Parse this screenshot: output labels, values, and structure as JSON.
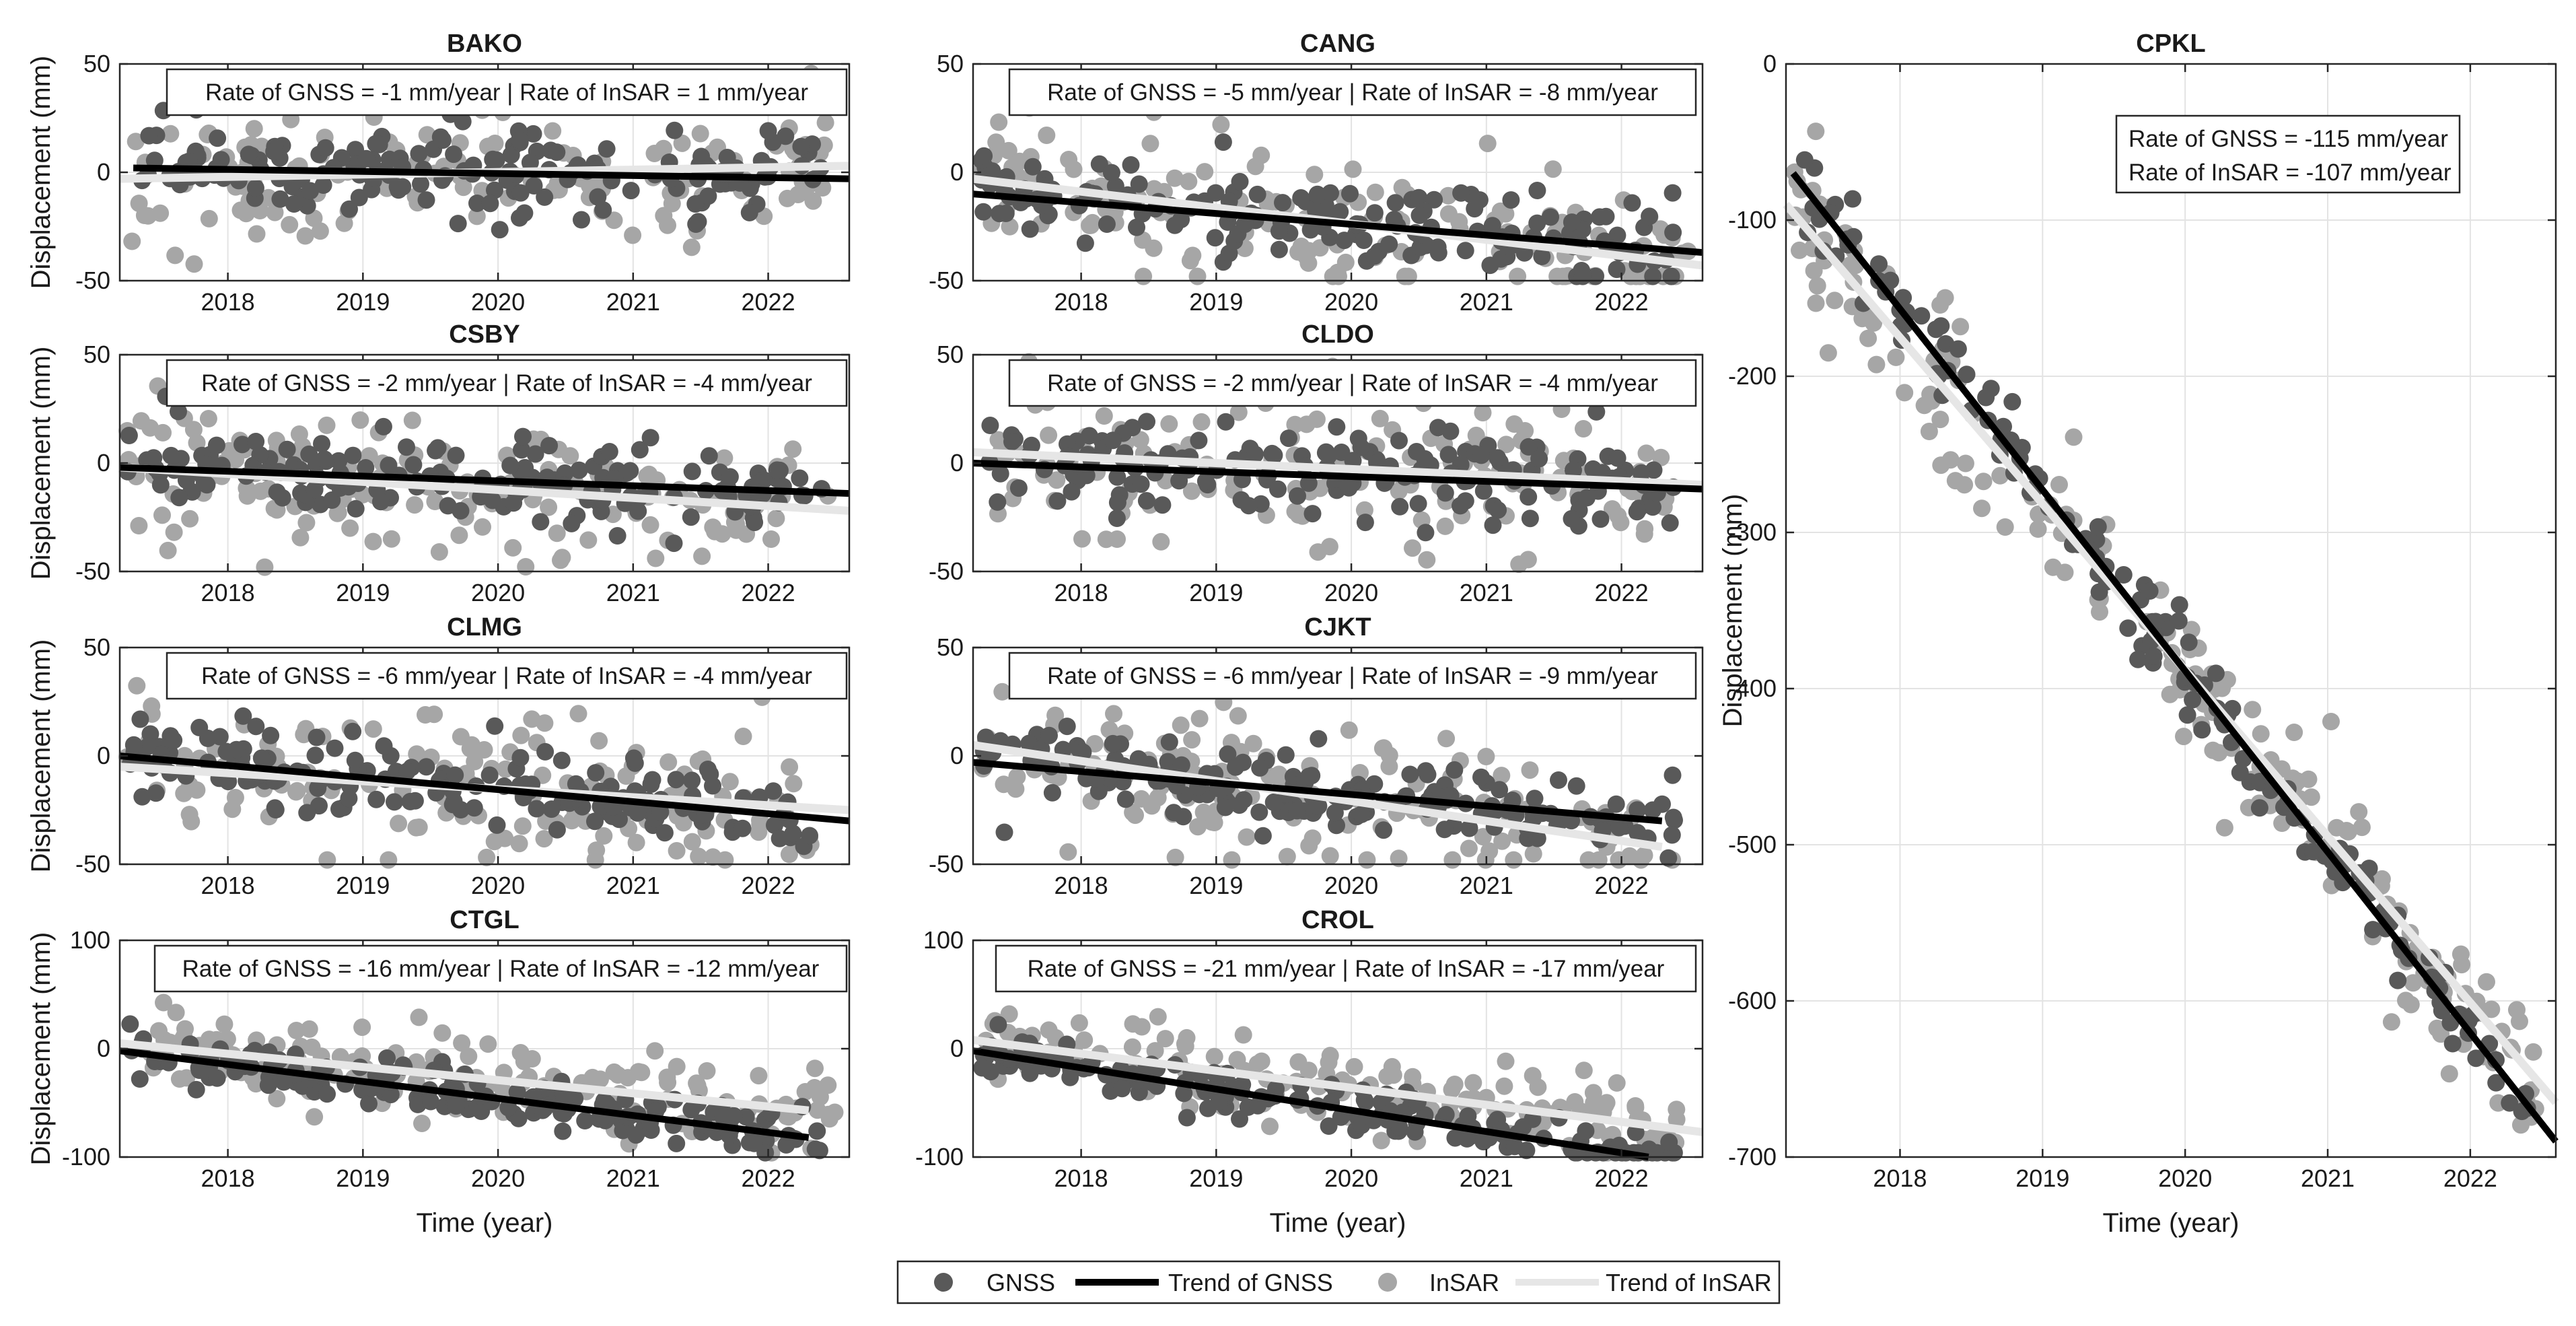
{
  "figure": {
    "x_axis_label": "Time (year)",
    "y_axis_label": "Displacement (mm)"
  },
  "legend": {
    "items": [
      {
        "label": "GNSS",
        "kind": "marker",
        "color": "#595959"
      },
      {
        "label": "Trend of GNSS",
        "kind": "line",
        "color": "#000000"
      },
      {
        "label": "InSAR",
        "kind": "marker",
        "color": "#a6a6a6"
      },
      {
        "label": "Trend of InSAR",
        "kind": "line",
        "color": "#e6e6e6"
      }
    ]
  },
  "colors": {
    "gnss": "#595959",
    "insar": "#a6a6a6",
    "gnss_trend": "#000000",
    "insar_trend": "#e6e6e6"
  },
  "chart_data": [
    {
      "type": "scatter",
      "title": "BAKO",
      "rate_gnss": "Rate of GNSS = -1 mm/year",
      "rate_insar": "Rate of InSAR = 1 mm/year",
      "xlim": [
        2017.2,
        2022.6
      ],
      "ylim": [
        -50,
        50
      ],
      "xticks": [
        2018,
        2019,
        2020,
        2021,
        2022
      ],
      "yticks": [
        -50,
        0,
        50
      ],
      "gnss_trend": {
        "x": [
          2017.3,
          2022.6
        ],
        "y": [
          2,
          -3
        ]
      },
      "insar_trend": {
        "x": [
          2017.2,
          2022.6
        ],
        "y": [
          -3,
          3
        ]
      },
      "gnss_rate_mm_per_year": -1,
      "insar_rate_mm_per_year": 1,
      "gnss_scatter_sd": 10,
      "insar_scatter_sd": 16
    },
    {
      "type": "scatter",
      "title": "CANG",
      "rate_gnss": "Rate of GNSS = -5 mm/year",
      "rate_insar": "Rate of InSAR = -8 mm/year",
      "xlim": [
        2017.2,
        2022.6
      ],
      "ylim": [
        -50,
        50
      ],
      "xticks": [
        2018,
        2019,
        2020,
        2021,
        2022
      ],
      "yticks": [
        -50,
        0,
        50
      ],
      "gnss_trend": {
        "x": [
          2017.2,
          2022.6
        ],
        "y": [
          -10,
          -37
        ]
      },
      "insar_trend": {
        "x": [
          2017.2,
          2022.6
        ],
        "y": [
          -3,
          -43
        ]
      },
      "gnss_rate_mm_per_year": -5,
      "insar_rate_mm_per_year": -8,
      "gnss_scatter_sd": 9,
      "insar_scatter_sd": 15
    },
    {
      "type": "scatter",
      "title": "CPKL",
      "rate_gnss": "Rate of GNSS = -115 mm/year",
      "rate_insar": "Rate of InSAR = -107 mm/year",
      "xlim": [
        2017.2,
        2022.6
      ],
      "ylim": [
        -700,
        0
      ],
      "xticks": [
        2018,
        2019,
        2020,
        2021,
        2022
      ],
      "yticks": [
        -700,
        -600,
        -500,
        -400,
        -300,
        -200,
        -100,
        0
      ],
      "gnss_trend": {
        "x": [
          2017.25,
          2022.6
        ],
        "y": [
          -70,
          -690
        ]
      },
      "insar_trend": {
        "x": [
          2017.2,
          2022.6
        ],
        "y": [
          -90,
          -665
        ]
      },
      "gnss_rate_mm_per_year": -115,
      "insar_rate_mm_per_year": -107,
      "gnss_scatter_sd": 12,
      "insar_scatter_sd": 28
    },
    {
      "type": "scatter",
      "title": "CSBY",
      "rate_gnss": "Rate of GNSS = -2 mm/year",
      "rate_insar": "Rate of InSAR = -4 mm/year",
      "xlim": [
        2017.2,
        2022.6
      ],
      "ylim": [
        -50,
        50
      ],
      "xticks": [
        2018,
        2019,
        2020,
        2021,
        2022
      ],
      "yticks": [
        -50,
        0,
        50
      ],
      "gnss_trend": {
        "x": [
          2017.2,
          2022.6
        ],
        "y": [
          -2,
          -14
        ]
      },
      "insar_trend": {
        "x": [
          2017.2,
          2022.6
        ],
        "y": [
          -2,
          -22
        ]
      },
      "gnss_rate_mm_per_year": -2,
      "insar_rate_mm_per_year": -4,
      "gnss_scatter_sd": 10,
      "insar_scatter_sd": 17
    },
    {
      "type": "scatter",
      "title": "CLDO",
      "rate_gnss": "Rate of GNSS = -2 mm/year",
      "rate_insar": "Rate of InSAR = -4 mm/year",
      "xlim": [
        2017.2,
        2022.6
      ],
      "ylim": [
        -50,
        50
      ],
      "xticks": [
        2018,
        2019,
        2020,
        2021,
        2022
      ],
      "yticks": [
        -50,
        0,
        50
      ],
      "gnss_trend": {
        "x": [
          2017.2,
          2022.6
        ],
        "y": [
          0,
          -12
        ]
      },
      "insar_trend": {
        "x": [
          2017.2,
          2022.6
        ],
        "y": [
          5,
          -10
        ]
      },
      "gnss_rate_mm_per_year": -2,
      "insar_rate_mm_per_year": -4,
      "gnss_scatter_sd": 11,
      "insar_scatter_sd": 17
    },
    {
      "type": "scatter",
      "title": "CLMG",
      "rate_gnss": "Rate of GNSS = -6 mm/year",
      "rate_insar": "Rate of InSAR = -4 mm/year",
      "xlim": [
        2017.2,
        2022.6
      ],
      "ylim": [
        -50,
        50
      ],
      "xticks": [
        2018,
        2019,
        2020,
        2021,
        2022
      ],
      "yticks": [
        -50,
        0,
        50
      ],
      "gnss_trend": {
        "x": [
          2017.2,
          2022.6
        ],
        "y": [
          0,
          -30
        ]
      },
      "insar_trend": {
        "x": [
          2017.2,
          2022.6
        ],
        "y": [
          -5,
          -25
        ]
      },
      "gnss_rate_mm_per_year": -6,
      "insar_rate_mm_per_year": -4,
      "gnss_scatter_sd": 9,
      "insar_scatter_sd": 17
    },
    {
      "type": "scatter",
      "title": "CJKT",
      "rate_gnss": "Rate of GNSS = -6 mm/year",
      "rate_insar": "Rate of InSAR = -9 mm/year",
      "xlim": [
        2017.2,
        2022.6
      ],
      "ylim": [
        -50,
        50
      ],
      "xticks": [
        2018,
        2019,
        2020,
        2021,
        2022
      ],
      "yticks": [
        -50,
        0,
        50
      ],
      "gnss_trend": {
        "x": [
          2017.2,
          2022.3
        ],
        "y": [
          -3,
          -30
        ]
      },
      "insar_trend": {
        "x": [
          2017.2,
          2022.3
        ],
        "y": [
          5,
          -42
        ]
      },
      "gnss_rate_mm_per_year": -6,
      "insar_rate_mm_per_year": -9,
      "gnss_scatter_sd": 9,
      "insar_scatter_sd": 17
    },
    {
      "type": "scatter",
      "title": "CTGL",
      "rate_gnss": "Rate of GNSS = -16 mm/year",
      "rate_insar": "Rate of InSAR = -12 mm/year",
      "xlim": [
        2017.2,
        2022.6
      ],
      "ylim": [
        -100,
        100
      ],
      "xticks": [
        2018,
        2019,
        2020,
        2021,
        2022
      ],
      "yticks": [
        -100,
        0,
        100
      ],
      "gnss_trend": {
        "x": [
          2017.2,
          2022.3
        ],
        "y": [
          -2,
          -82
        ]
      },
      "insar_trend": {
        "x": [
          2017.2,
          2022.3
        ],
        "y": [
          5,
          -57
        ]
      },
      "gnss_rate_mm_per_year": -16,
      "insar_rate_mm_per_year": -12,
      "gnss_scatter_sd": 10,
      "insar_scatter_sd": 20
    },
    {
      "type": "scatter",
      "title": "CROL",
      "rate_gnss": "Rate of GNSS = -21 mm/year",
      "rate_insar": "Rate of InSAR = -17 mm/year",
      "xlim": [
        2017.2,
        2022.6
      ],
      "ylim": [
        -100,
        100
      ],
      "xticks": [
        2018,
        2019,
        2020,
        2021,
        2022
      ],
      "yticks": [
        -100,
        0,
        100
      ],
      "gnss_trend": {
        "x": [
          2017.2,
          2022.2
        ],
        "y": [
          -2,
          -100
        ]
      },
      "insar_trend": {
        "x": [
          2017.2,
          2022.6
        ],
        "y": [
          8,
          -77
        ]
      },
      "gnss_rate_mm_per_year": -21,
      "insar_rate_mm_per_year": -17,
      "gnss_scatter_sd": 10,
      "insar_scatter_sd": 18
    }
  ]
}
